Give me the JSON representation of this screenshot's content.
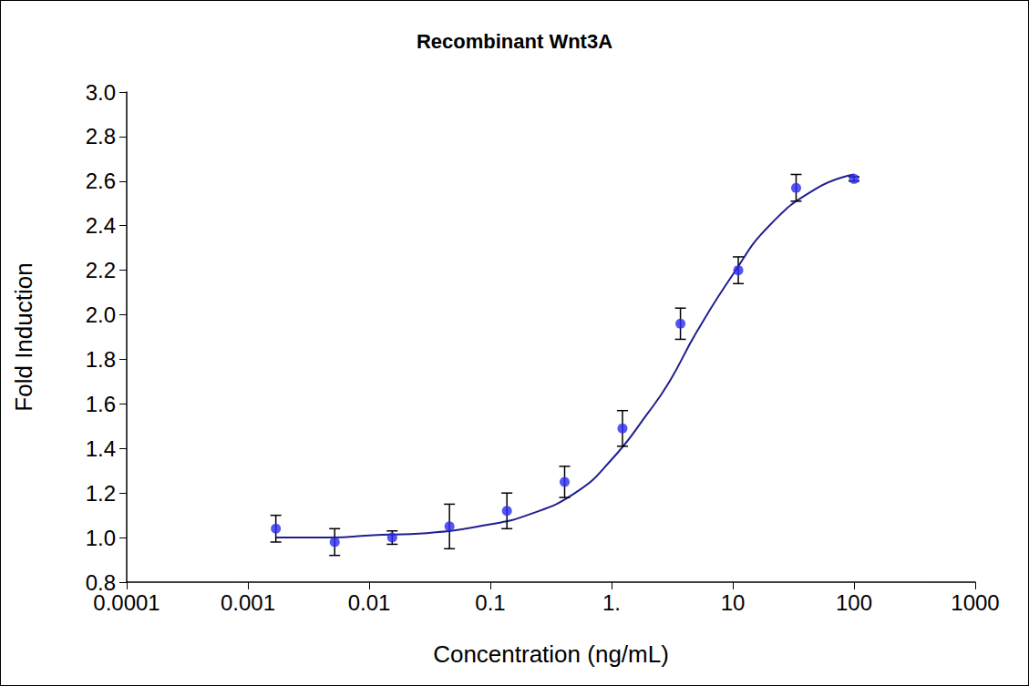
{
  "chart_data": {
    "type": "scatter",
    "title": "Recombinant Wnt3A",
    "x_label": "Concentration (ng/mL)",
    "y_label": "Fold Induction",
    "log": "x",
    "grid": false,
    "xlim": [
      0.0001,
      1000
    ],
    "xticks": [
      0.0001,
      0.001,
      0.01,
      0.1,
      {
        "value": 1,
        "label": "1."
      },
      10,
      100,
      1000
    ],
    "ylim": [
      0.8,
      3.0
    ],
    "yticks": [
      0.8,
      {
        "value": 1.0,
        "label": "1.0"
      },
      1.2,
      1.4,
      1.6,
      1.8,
      {
        "value": 2.0,
        "label": "2.0"
      },
      2.2,
      2.4,
      2.6,
      2.8,
      {
        "value": 3.0,
        "label": "3.0"
      }
    ],
    "series": [
      {
        "type": "line",
        "color": "#1f1f8f",
        "line_style": "solid",
        "x": [
          0.0017,
          0.005,
          0.01,
          0.03,
          0.1,
          0.2,
          0.5,
          1,
          2,
          3,
          5,
          10,
          20,
          50,
          100
        ],
        "values": [
          1.0,
          1.0,
          1.01,
          1.02,
          1.06,
          1.1,
          1.2,
          1.35,
          1.56,
          1.7,
          1.92,
          2.18,
          2.4,
          2.57,
          2.63
        ]
      },
      {
        "type": "scatter",
        "color": "#2b2bf0",
        "marker": "circle",
        "x": [
          0.0017,
          0.0052,
          0.0155,
          0.046,
          0.137,
          0.41,
          1.23,
          3.7,
          11.1,
          33.3,
          100
        ],
        "values": [
          1.04,
          0.98,
          1.0,
          1.05,
          1.12,
          1.25,
          1.49,
          1.96,
          2.2,
          2.57,
          2.61
        ],
        "errors": [
          0.06,
          0.06,
          0.03,
          0.1,
          0.08,
          0.07,
          0.08,
          0.07,
          0.06,
          0.06,
          0.01
        ]
      }
    ]
  }
}
